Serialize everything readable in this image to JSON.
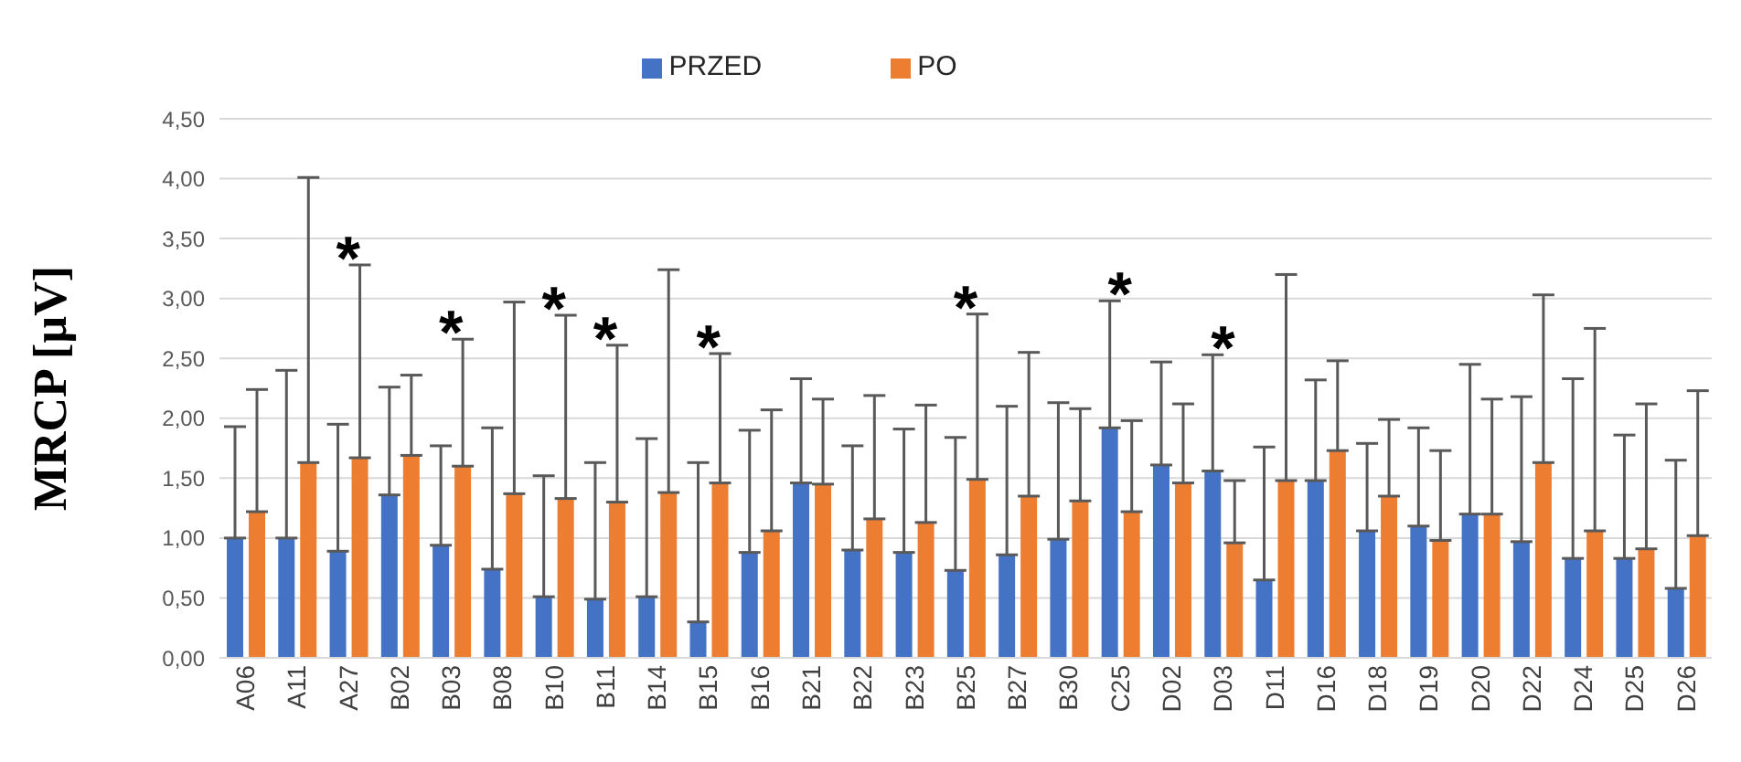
{
  "chart_data": {
    "type": "bar",
    "ylabel": "MRCP [µV]",
    "categories": [
      "A06",
      "A11",
      "A27",
      "B02",
      "B03",
      "B08",
      "B10",
      "B11",
      "B14",
      "B15",
      "B16",
      "B21",
      "B22",
      "B23",
      "B25",
      "B27",
      "B30",
      "C25",
      "D02",
      "D03",
      "D11",
      "D16",
      "D18",
      "D19",
      "D20",
      "D22",
      "D24",
      "D25",
      "D26"
    ],
    "series": [
      {
        "name": "PRZED",
        "color": "#4472c4",
        "values": [
          1.0,
          1.0,
          0.89,
          1.36,
          0.94,
          0.74,
          0.51,
          0.49,
          0.51,
          0.3,
          0.88,
          1.46,
          0.9,
          0.88,
          0.73,
          0.86,
          0.99,
          1.92,
          1.61,
          1.56,
          0.65,
          1.48,
          1.06,
          1.1,
          1.2,
          0.97,
          0.83,
          0.83,
          0.58
        ],
        "errors": [
          [
            1.0,
            1.93
          ],
          [
            1.0,
            2.4
          ],
          [
            0.89,
            1.95
          ],
          [
            1.36,
            2.26
          ],
          [
            0.94,
            1.77
          ],
          [
            0.74,
            1.92
          ],
          [
            0.51,
            1.52
          ],
          [
            0.49,
            1.63
          ],
          [
            0.51,
            1.83
          ],
          [
            0.3,
            1.63
          ],
          [
            0.88,
            1.9
          ],
          [
            1.46,
            2.33
          ],
          [
            0.9,
            1.77
          ],
          [
            0.88,
            1.91
          ],
          [
            0.73,
            1.84
          ],
          [
            0.86,
            2.1
          ],
          [
            0.99,
            2.13
          ],
          [
            1.92,
            2.98
          ],
          [
            1.61,
            2.47
          ],
          [
            1.56,
            2.53
          ],
          [
            0.65,
            1.76
          ],
          [
            1.48,
            2.32
          ],
          [
            1.06,
            1.79
          ],
          [
            1.1,
            1.92
          ],
          [
            1.2,
            2.45
          ],
          [
            0.97,
            2.18
          ],
          [
            0.83,
            2.33
          ],
          [
            0.83,
            1.86
          ],
          [
            0.58,
            1.65
          ]
        ]
      },
      {
        "name": "PO",
        "color": "#ed7d31",
        "values": [
          1.22,
          1.63,
          1.67,
          1.69,
          1.6,
          1.37,
          1.33,
          1.3,
          1.38,
          1.46,
          1.06,
          1.45,
          1.16,
          1.13,
          1.49,
          1.35,
          1.31,
          1.22,
          1.46,
          0.96,
          1.48,
          1.73,
          1.35,
          0.98,
          1.2,
          1.63,
          1.06,
          0.91,
          1.02
        ],
        "errors": [
          [
            1.22,
            2.24
          ],
          [
            1.63,
            4.01
          ],
          [
            1.67,
            3.28
          ],
          [
            1.69,
            2.36
          ],
          [
            1.6,
            2.66
          ],
          [
            1.37,
            2.97
          ],
          [
            1.33,
            2.86
          ],
          [
            1.3,
            2.61
          ],
          [
            1.38,
            3.24
          ],
          [
            1.46,
            2.54
          ],
          [
            1.06,
            2.07
          ],
          [
            1.45,
            2.16
          ],
          [
            1.16,
            2.19
          ],
          [
            1.13,
            2.11
          ],
          [
            1.49,
            2.87
          ],
          [
            1.35,
            2.55
          ],
          [
            1.31,
            2.08
          ],
          [
            1.22,
            1.98
          ],
          [
            1.46,
            2.12
          ],
          [
            0.96,
            1.48
          ],
          [
            1.48,
            3.2
          ],
          [
            1.73,
            2.48
          ],
          [
            1.35,
            1.99
          ],
          [
            0.98,
            1.73
          ],
          [
            1.2,
            2.16
          ],
          [
            1.63,
            3.03
          ],
          [
            1.06,
            2.75
          ],
          [
            0.91,
            2.12
          ],
          [
            1.02,
            2.23
          ]
        ]
      }
    ],
    "ylim": [
      0,
      4.5
    ],
    "yticks": [
      {
        "value": 0,
        "label": "0,00"
      },
      {
        "value": 0.5,
        "label": "0,50"
      },
      {
        "value": 1,
        "label": "1,00"
      },
      {
        "value": 1.5,
        "label": "1,50"
      },
      {
        "value": 2,
        "label": "2,00"
      },
      {
        "value": 2.5,
        "label": "2,50"
      },
      {
        "value": 3,
        "label": "3,00"
      },
      {
        "value": 3.5,
        "label": "3,50"
      },
      {
        "value": 4,
        "label": "4,00"
      },
      {
        "value": 4.5,
        "label": "4,50"
      }
    ],
    "grid": "y",
    "legend": "top",
    "annotations": [
      {
        "text": "*",
        "x": "A27"
      },
      {
        "text": "*",
        "x": "B03"
      },
      {
        "text": "*",
        "x": "B10"
      },
      {
        "text": "*",
        "x": "B11"
      },
      {
        "text": "*",
        "x": "B15"
      },
      {
        "text": "*",
        "x": "B25"
      },
      {
        "text": "*",
        "x": "C25"
      },
      {
        "text": "*",
        "x": "D03"
      }
    ]
  }
}
